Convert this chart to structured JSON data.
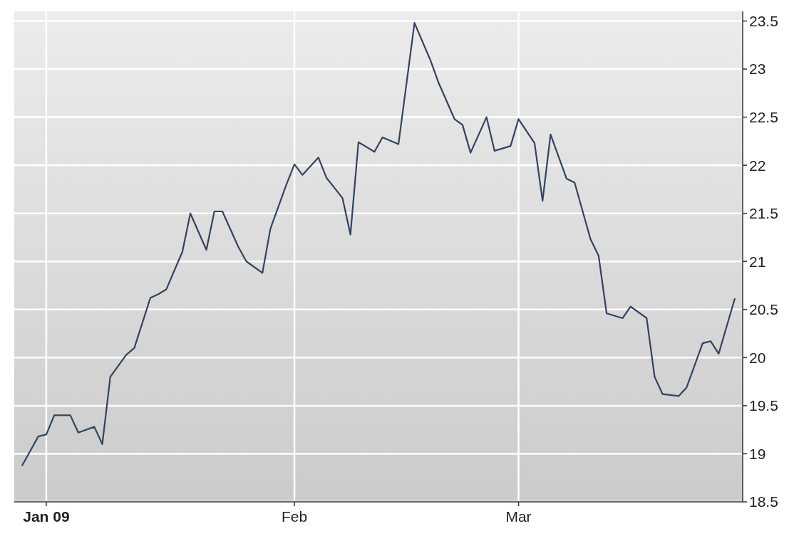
{
  "chart_data": {
    "type": "line",
    "x": [
      "2008-12-29",
      "2008-12-31",
      "2009-01-01",
      "2009-01-02",
      "2009-01-04",
      "2009-01-05",
      "2009-01-07",
      "2009-01-08",
      "2009-01-09",
      "2009-01-11",
      "2009-01-12",
      "2009-01-14",
      "2009-01-15",
      "2009-01-16",
      "2009-01-18",
      "2009-01-19",
      "2009-01-21",
      "2009-01-22",
      "2009-01-23",
      "2009-01-25",
      "2009-01-26",
      "2009-01-28",
      "2009-01-29",
      "2009-01-31",
      "2009-02-01",
      "2009-02-02",
      "2009-02-04",
      "2009-02-05",
      "2009-02-07",
      "2009-02-08",
      "2009-02-09",
      "2009-02-11",
      "2009-02-12",
      "2009-02-14",
      "2009-02-15",
      "2009-02-16",
      "2009-02-18",
      "2009-02-19",
      "2009-02-21",
      "2009-02-22",
      "2009-02-23",
      "2009-02-25",
      "2009-02-26",
      "2009-02-28",
      "2009-03-01",
      "2009-03-03",
      "2009-03-04",
      "2009-03-05",
      "2009-03-07",
      "2009-03-08",
      "2009-03-10",
      "2009-03-11",
      "2009-03-12",
      "2009-03-14",
      "2009-03-15",
      "2009-03-17",
      "2009-03-18",
      "2009-03-19",
      "2009-03-21",
      "2009-03-22",
      "2009-03-24",
      "2009-03-25",
      "2009-03-26",
      "2009-03-28"
    ],
    "series": [
      {
        "color": "#33435f",
        "values": [
          18.88,
          19.18,
          19.2,
          19.4,
          19.4,
          19.22,
          19.28,
          19.1,
          19.8,
          20.03,
          20.1,
          20.62,
          20.66,
          20.71,
          21.1,
          21.5,
          21.12,
          21.52,
          21.52,
          21.15,
          21.0,
          20.88,
          21.34,
          21.8,
          22.01,
          21.9,
          22.08,
          21.87,
          21.66,
          21.28,
          22.24,
          22.14,
          22.29,
          22.22,
          22.85,
          23.48,
          23.09,
          22.86,
          22.48,
          22.42,
          22.13,
          22.5,
          22.15,
          22.2,
          22.48,
          22.23,
          21.63,
          22.32,
          21.86,
          21.82,
          21.23,
          21.06,
          20.46,
          20.41,
          20.53,
          20.41,
          19.8,
          19.62,
          19.6,
          19.69,
          20.15,
          20.17,
          20.04,
          20.61
        ]
      }
    ],
    "xlim": [
      "2008-12-28",
      "2009-03-29"
    ],
    "xticks": [
      {
        "value": "2009-01-01",
        "label": "Jan 09"
      },
      {
        "value": "2009-02-01",
        "label": "Feb"
      },
      {
        "value": "2009-03-01",
        "label": "Mar"
      }
    ],
    "ylim": [
      18.5,
      23.6
    ],
    "yticks": [
      {
        "value": 18.5,
        "label": "18.5"
      },
      19,
      {
        "value": 19.5,
        "label": "19.5"
      },
      20,
      {
        "value": 20.5,
        "label": "20.5"
      },
      21,
      {
        "value": 21.5,
        "label": "21.5"
      },
      22,
      {
        "value": 22.5,
        "label": "22.5"
      },
      23,
      {
        "value": 23.5,
        "label": "23.5"
      }
    ],
    "grid": true,
    "line_style": "solid",
    "marker": "none"
  }
}
